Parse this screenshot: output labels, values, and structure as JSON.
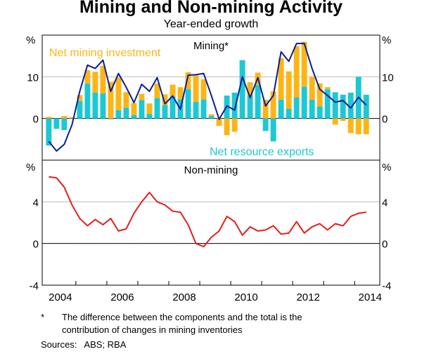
{
  "title": "Mining and Non-mining Activity",
  "subtitle": "Year-ended growth",
  "footnote_marker": "*",
  "footnote_line1": "The difference between the components and the total is the",
  "footnote_line2": "contribution of changes in mining inventories",
  "sources": "Sources:   ABS; RBA",
  "colors": {
    "exports": "#1CC8D4",
    "investment": "#FDB515",
    "total": "#0A1E96",
    "non_mining": "#E0201B",
    "grid": "#BBBBBB",
    "axis": "#000000"
  },
  "chart_data": [
    {
      "type": "bar",
      "title": "Mining*",
      "unit_label": "%",
      "ylim": [
        -10,
        20
      ],
      "yticks": [
        0,
        10
      ],
      "ytick_labels": [
        "0",
        "10"
      ],
      "grid": true,
      "annotations": [
        "Net mining investment",
        "Net resource exports"
      ],
      "x_start": "2004 Q1",
      "x_frequency": "quarterly",
      "series": [
        {
          "name": "Net resource exports",
          "kind": "stacked-bar",
          "values": [
            -6.5,
            -2.5,
            -2.8,
            0,
            4.2,
            8.4,
            6.2,
            6.0,
            -0.2,
            2.0,
            2.6,
            0.8,
            4.4,
            1.1,
            4.9,
            3.2,
            5.3,
            4.6,
            7.0,
            4.0,
            4.6,
            0.6,
            0,
            5.5,
            6.2,
            14.0,
            5.5,
            8.0,
            -3.0,
            -5.5,
            4.5,
            2.3,
            5.0,
            7.6,
            4.5,
            2.9,
            7.0,
            6.3,
            5.7,
            6.2,
            10.0,
            5.7
          ]
        },
        {
          "name": "Net mining investment",
          "kind": "stacked-bar",
          "values": [
            0.4,
            0,
            0.6,
            0.3,
            1.4,
            3.2,
            5.0,
            6.6,
            8.8,
            7.8,
            3.7,
            2.9,
            1.5,
            2.5,
            3.5,
            2.6,
            2.8,
            2.9,
            4.1,
            6.3,
            4.8,
            0.4,
            -1.8,
            -4.0,
            -3.2,
            0,
            3.2,
            3.0,
            4.5,
            6.5,
            10.0,
            9.0,
            12.3,
            10.8,
            5.5,
            5.5,
            0.5,
            -1.5,
            -0.6,
            -3.5,
            -3.8,
            -3.8
          ]
        },
        {
          "name": "Mining total",
          "kind": "line",
          "values": [
            -5.5,
            -7.8,
            -6.2,
            -1.5,
            6.5,
            12.8,
            12.0,
            14.0,
            6.5,
            10.8,
            7.5,
            3.8,
            8.2,
            6.5,
            9.8,
            3.5,
            5.4,
            2.2,
            10.4,
            10.5,
            10.8,
            5.5,
            -0.2,
            3.0,
            2.0,
            10.0,
            5.0,
            9.8,
            3.0,
            5.5,
            16.0,
            13.7,
            18.0,
            18.0,
            12.0,
            7.0,
            5.5,
            3.9,
            4.3,
            2.5,
            5.1,
            3.2
          ]
        }
      ]
    },
    {
      "type": "line",
      "title": "Non-mining",
      "unit_label": "%",
      "ylim": [
        -4,
        8
      ],
      "yticks": [
        -4,
        0,
        4
      ],
      "ytick_labels": [
        "-4",
        "0",
        "4"
      ],
      "grid": true,
      "x_start": "2004 Q1",
      "x_frequency": "quarterly",
      "xtick_labels": [
        "2004",
        "2006",
        "2008",
        "2010",
        "2012",
        "2014"
      ],
      "series": [
        {
          "name": "Non-mining",
          "values": [
            6.4,
            6.3,
            5.4,
            3.7,
            2.4,
            1.7,
            2.3,
            1.8,
            2.4,
            1.2,
            1.4,
            2.9,
            4.0,
            4.9,
            4.0,
            3.7,
            3.1,
            3.0,
            1.8,
            0.0,
            -0.3,
            0.6,
            1.2,
            2.6,
            2.1,
            0.8,
            1.6,
            1.2,
            1.3,
            1.7,
            0.9,
            1.0,
            2.1,
            1.0,
            1.6,
            1.9,
            1.3,
            1.9,
            1.7,
            2.6,
            2.9,
            3.0
          ]
        }
      ]
    }
  ]
}
